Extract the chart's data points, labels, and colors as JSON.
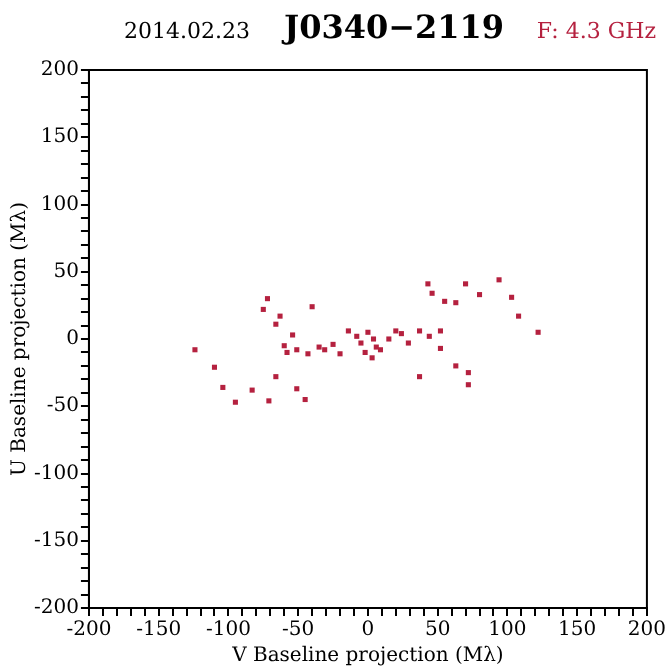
{
  "chart_data": {
    "type": "scatter",
    "title": "J0340−2119",
    "subtitle": "F: 4.3 GHz",
    "annotations": [
      "2014.02.23"
    ],
    "xlabel": "V Baseline projection (Mλ)",
    "ylabel": "U Baseline projection (Mλ)",
    "xlim": [
      -200,
      200
    ],
    "ylim": [
      -200,
      200
    ],
    "xticks": [
      -200,
      {
        "value": -190,
        "label": null
      },
      {
        "value": -180,
        "label": null
      },
      {
        "value": -170,
        "label": null
      },
      {
        "value": -160,
        "label": null
      },
      -150,
      {
        "value": -140,
        "label": null
      },
      {
        "value": -130,
        "label": null
      },
      {
        "value": -120,
        "label": null
      },
      {
        "value": -110,
        "label": null
      },
      -100,
      {
        "value": -90,
        "label": null
      },
      {
        "value": -80,
        "label": null
      },
      {
        "value": -70,
        "label": null
      },
      {
        "value": -60,
        "label": null
      },
      -50,
      {
        "value": -40,
        "label": null
      },
      {
        "value": -30,
        "label": null
      },
      {
        "value": -20,
        "label": null
      },
      {
        "value": -10,
        "label": null
      },
      0,
      {
        "value": 10,
        "label": null
      },
      {
        "value": 20,
        "label": null
      },
      {
        "value": 30,
        "label": null
      },
      {
        "value": 40,
        "label": null
      },
      50,
      {
        "value": 60,
        "label": null
      },
      {
        "value": 70,
        "label": null
      },
      {
        "value": 80,
        "label": null
      },
      {
        "value": 90,
        "label": null
      },
      100,
      {
        "value": 110,
        "label": null
      },
      {
        "value": 120,
        "label": null
      },
      {
        "value": 130,
        "label": null
      },
      {
        "value": 140,
        "label": null
      },
      150,
      {
        "value": 160,
        "label": null
      },
      {
        "value": 170,
        "label": null
      },
      {
        "value": 180,
        "label": null
      },
      {
        "value": 190,
        "label": null
      },
      200
    ],
    "yticks": [
      -200,
      {
        "value": -190,
        "label": null
      },
      {
        "value": -180,
        "label": null
      },
      {
        "value": -170,
        "label": null
      },
      {
        "value": -160,
        "label": null
      },
      -150,
      {
        "value": -140,
        "label": null
      },
      {
        "value": -130,
        "label": null
      },
      {
        "value": -120,
        "label": null
      },
      {
        "value": -110,
        "label": null
      },
      -100,
      {
        "value": -90,
        "label": null
      },
      {
        "value": -80,
        "label": null
      },
      {
        "value": -70,
        "label": null
      },
      {
        "value": -60,
        "label": null
      },
      -50,
      {
        "value": -40,
        "label": null
      },
      {
        "value": -30,
        "label": null
      },
      {
        "value": -20,
        "label": null
      },
      {
        "value": -10,
        "label": null
      },
      0,
      {
        "value": 10,
        "label": null
      },
      {
        "value": 20,
        "label": null
      },
      {
        "value": 30,
        "label": null
      },
      {
        "value": 40,
        "label": null
      },
      50,
      {
        "value": 60,
        "label": null
      },
      {
        "value": 70,
        "label": null
      },
      {
        "value": 80,
        "label": null
      },
      {
        "value": 90,
        "label": null
      },
      100,
      {
        "value": 110,
        "label": null
      },
      {
        "value": 120,
        "label": null
      },
      {
        "value": 130,
        "label": null
      },
      {
        "value": 140,
        "label": null
      },
      150,
      {
        "value": 160,
        "label": null
      },
      {
        "value": 170,
        "label": null
      },
      {
        "value": 180,
        "label": null
      },
      {
        "value": 190,
        "label": null
      },
      200
    ],
    "grid": false,
    "legend": false,
    "marker": "square",
    "series": [
      {
        "color": "#b5213f",
        "x": [
          -124,
          -110,
          -104,
          -95,
          -83,
          -71,
          -72,
          -75,
          -63,
          -66,
          -40,
          -54,
          -51,
          -43,
          -31,
          -20,
          -66,
          -51,
          -45,
          -5,
          -14,
          9,
          3,
          20,
          37,
          52,
          29,
          52,
          37,
          63,
          72,
          72,
          46,
          43,
          55,
          63,
          70,
          80,
          94,
          103,
          108,
          122,
          -25,
          -8,
          0,
          6,
          -2,
          4,
          -35,
          -60,
          -58,
          15,
          44,
          24
        ],
        "values": [
          -8,
          -21,
          -36,
          -47,
          -38,
          -46,
          30,
          22,
          17,
          11,
          24,
          3,
          -8,
          -11,
          -8,
          -11,
          -28,
          -37,
          -45,
          -3,
          6,
          -8,
          -14,
          6,
          6,
          6,
          -3,
          -7,
          -28,
          -20,
          -25,
          -34,
          34,
          41,
          28,
          27,
          41,
          33,
          44,
          31,
          17,
          5,
          -4,
          2,
          5,
          -6,
          -10,
          0,
          -6,
          -5,
          -10,
          0,
          2,
          4
        ]
      }
    ]
  }
}
